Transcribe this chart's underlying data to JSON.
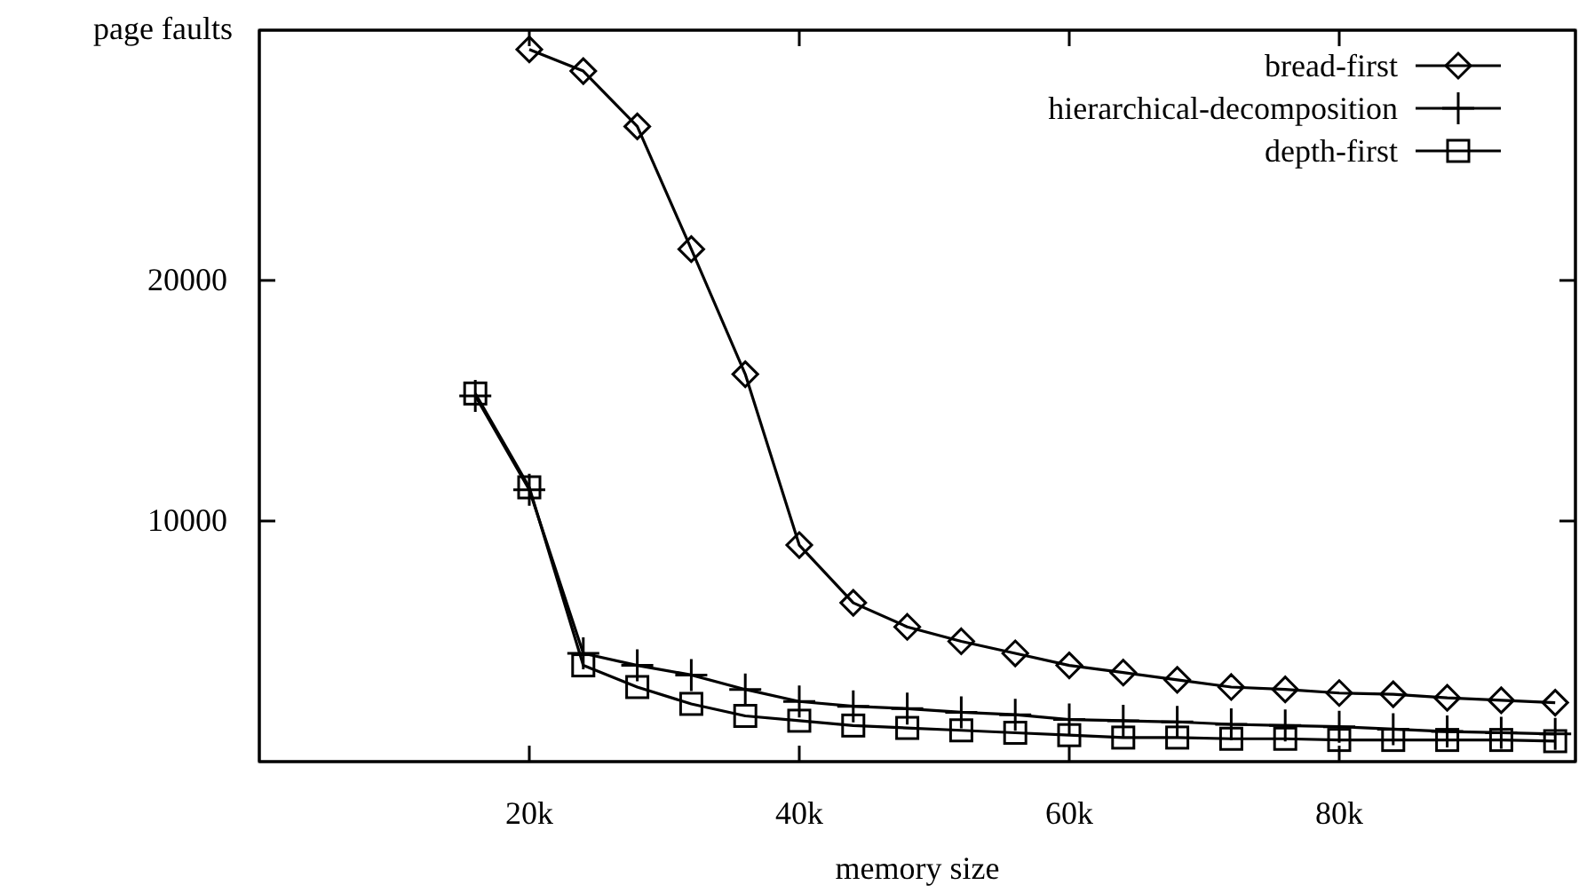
{
  "chart_data": {
    "type": "line",
    "xlabel": "memory size",
    "ylabel": "page faults",
    "xlim": [
      0,
      97500
    ],
    "ylim": [
      0,
      30400
    ],
    "xticks": [
      {
        "value": 20000,
        "label": "20k"
      },
      {
        "value": 40000,
        "label": "40k"
      },
      {
        "value": 60000,
        "label": "60k"
      },
      {
        "value": 80000,
        "label": "80k"
      }
    ],
    "yticks": [
      10000,
      20000
    ],
    "grid": false,
    "legend": "top right",
    "line_style": "solid",
    "series": [
      {
        "name": "bread-first",
        "color": "#000000",
        "marker": "diamond",
        "x": [
          20000,
          24000,
          28000,
          32000,
          36000,
          40000,
          44000,
          48000,
          52000,
          56000,
          60000,
          64000,
          68000,
          72000,
          76000,
          80000,
          84000,
          88000,
          92000,
          96000
        ],
        "values": [
          29600,
          28700,
          26400,
          21300,
          16100,
          9000,
          6600,
          5600,
          5000,
          4500,
          4000,
          3700,
          3400,
          3100,
          3000,
          2850,
          2800,
          2650,
          2550,
          2450
        ]
      },
      {
        "name": "hierarchical-decomposition",
        "color": "#000000",
        "marker": "cross",
        "x": [
          16000,
          20000,
          24000,
          28000,
          32000,
          36000,
          40000,
          44000,
          48000,
          52000,
          56000,
          60000,
          64000,
          68000,
          72000,
          76000,
          80000,
          84000,
          88000,
          92000,
          96000
        ],
        "values": [
          15200,
          11300,
          4500,
          4000,
          3600,
          3000,
          2500,
          2300,
          2200,
          2050,
          1950,
          1750,
          1700,
          1650,
          1550,
          1500,
          1450,
          1350,
          1250,
          1200,
          1150
        ]
      },
      {
        "name": "depth-first",
        "color": "#000000",
        "marker": "square",
        "x": [
          16000,
          20000,
          24000,
          28000,
          32000,
          36000,
          40000,
          44000,
          48000,
          52000,
          56000,
          60000,
          64000,
          68000,
          72000,
          76000,
          80000,
          84000,
          88000,
          92000,
          96000
        ],
        "values": [
          15300,
          11400,
          4000,
          3100,
          2400,
          1900,
          1700,
          1500,
          1400,
          1300,
          1200,
          1100,
          1000,
          1000,
          950,
          950,
          900,
          900,
          900,
          900,
          850
        ]
      }
    ]
  }
}
